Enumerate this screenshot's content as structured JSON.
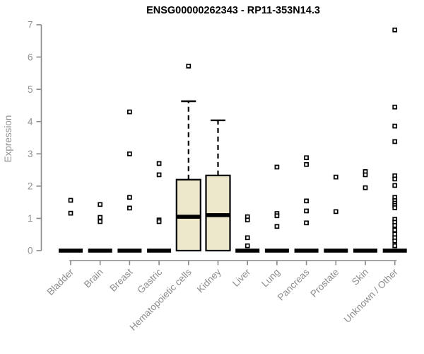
{
  "title": "ENSG00000262343 - RP11-353N14.3",
  "y_axis": {
    "label": "Expression",
    "ticks": [
      "0",
      "1",
      "2",
      "3",
      "4",
      "5",
      "6",
      "7"
    ]
  },
  "chart_data": {
    "type": "boxplot",
    "title": "ENSG00000262343 - RP11-353N14.3",
    "xlabel": "",
    "ylabel": "Expression",
    "ylim": [
      0,
      7
    ],
    "y_ticks": [
      0,
      1,
      2,
      3,
      4,
      5,
      6,
      7
    ],
    "grid": false,
    "legend": false,
    "categories": [
      "Bladder",
      "Brain",
      "Breast",
      "Gastric",
      "Hematopoietic cells",
      "Kidney",
      "Liver",
      "Lung",
      "Pancreas",
      "Prostate",
      "Skin",
      "Unknown / Other"
    ],
    "boxes": [
      {
        "label": "Bladder",
        "whisker_low": 0,
        "q1": 0,
        "median": 0,
        "q3": 0,
        "whisker_high": 0,
        "outliers": [
          1.56,
          1.16
        ]
      },
      {
        "label": "Brain",
        "whisker_low": 0,
        "q1": 0,
        "median": 0,
        "q3": 0,
        "whisker_high": 0,
        "outliers": [
          1.43,
          1.03,
          0.9
        ]
      },
      {
        "label": "Breast",
        "whisker_low": 0,
        "q1": 0,
        "median": 0,
        "q3": 0,
        "whisker_high": 0,
        "outliers": [
          4.3,
          3.0,
          1.65,
          1.32
        ]
      },
      {
        "label": "Gastric",
        "whisker_low": 0,
        "q1": 0,
        "median": 0,
        "q3": 0,
        "whisker_high": 0,
        "outliers": [
          2.7,
          2.35,
          0.95,
          0.9
        ]
      },
      {
        "label": "Hematopoietic cells",
        "whisker_low": 0,
        "q1": 0,
        "median": 1.05,
        "q3": 2.2,
        "whisker_high": 4.63,
        "outliers": [
          5.72
        ]
      },
      {
        "label": "Kidney",
        "whisker_low": 0,
        "q1": 0,
        "median": 1.1,
        "q3": 2.33,
        "whisker_high": 4.04,
        "outliers": []
      },
      {
        "label": "Liver",
        "whisker_low": 0,
        "q1": 0,
        "median": 0,
        "q3": 0,
        "whisker_high": 0,
        "outliers": [
          1.05,
          0.95,
          0.4,
          0.15
        ]
      },
      {
        "label": "Lung",
        "whisker_low": 0,
        "q1": 0,
        "median": 0,
        "q3": 0,
        "whisker_high": 0,
        "outliers": [
          2.59,
          1.15,
          1.08,
          0.75
        ]
      },
      {
        "label": "Pancreas",
        "whisker_low": 0,
        "q1": 0,
        "median": 0,
        "q3": 0,
        "whisker_high": 0,
        "outliers": [
          2.88,
          2.67,
          1.54,
          1.23,
          0.86
        ]
      },
      {
        "label": "Prostate",
        "whisker_low": 0,
        "q1": 0,
        "median": 0,
        "q3": 0,
        "whisker_high": 0,
        "outliers": [
          2.28,
          1.21
        ]
      },
      {
        "label": "Skin",
        "whisker_low": 0,
        "q1": 0,
        "median": 0,
        "q3": 0,
        "whisker_high": 0,
        "outliers": [
          2.45,
          2.35,
          1.95
        ]
      },
      {
        "label": "Unknown / Other",
        "whisker_low": 0,
        "q1": 0,
        "median": 0,
        "q3": 0,
        "whisker_high": 0,
        "outliers": [
          6.84,
          4.45,
          3.86,
          3.38,
          2.32,
          2.22,
          2.02,
          1.65,
          1.55,
          1.47,
          1.4,
          1.33,
          0.97,
          0.88,
          0.78,
          0.64,
          0.51,
          0.4,
          0.3,
          0.15
        ]
      }
    ],
    "colors": {
      "box_fill": "#EDE8CC",
      "box_stroke": "#000000",
      "median": "#000000",
      "outlier_stroke": "#000000",
      "outlier_fill": "#ffffff",
      "axis_line": "#898989",
      "axis_text": "#929292",
      "title_text": "#000000"
    }
  }
}
